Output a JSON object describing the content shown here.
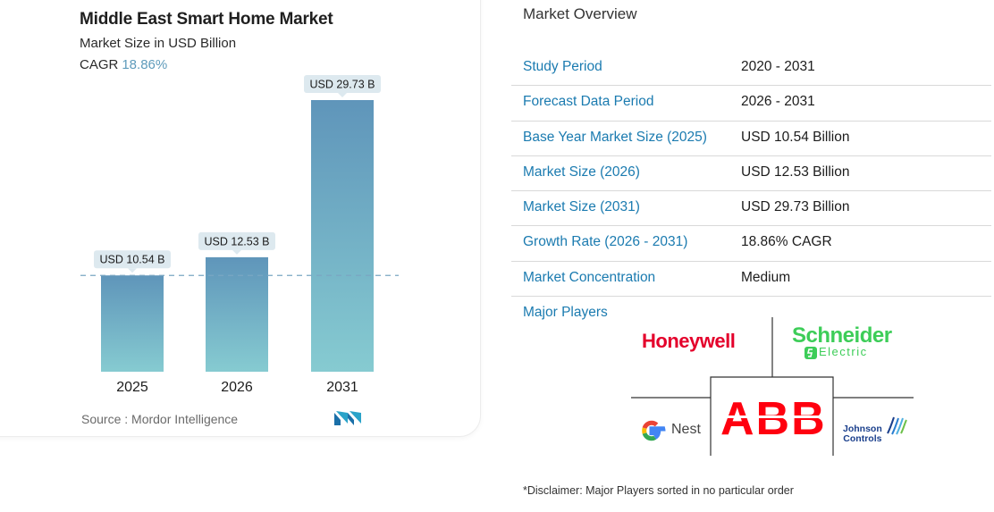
{
  "chart": {
    "title": "Middle East Smart Home Market",
    "subtitle": "Market Size in USD Billion",
    "cagr_label": "CAGR",
    "cagr_value": "18.86%",
    "source": "Source :  Mordor Intelligence"
  },
  "chart_data": {
    "type": "bar",
    "title": "Middle East Smart Home Market",
    "ylabel": "Market Size in USD Billion",
    "categories": [
      "2025",
      "2026",
      "2031"
    ],
    "values": [
      10.54,
      12.53,
      29.73
    ],
    "data_labels": [
      "USD 10.54 B",
      "USD 12.53 B",
      "USD 29.73 B"
    ],
    "ylim": [
      0,
      29.73
    ],
    "reference_line": 10.54,
    "colors": {
      "bar_top": "#5f95ba",
      "bar_bottom": "#86cbd1",
      "label_bg": "#dde9ef",
      "ref_line": "#7aa6c2"
    }
  },
  "overview": {
    "heading": "Market Overview",
    "rows": [
      {
        "label": "Study Period",
        "value": "2020 - 2031"
      },
      {
        "label": "Forecast Data Period",
        "value": "2026 - 2031"
      },
      {
        "label": "Base Year Market Size (2025)",
        "value": "USD 10.54 Billion"
      },
      {
        "label": "Market Size (2026)",
        "value": "USD 12.53 Billion"
      },
      {
        "label": "Market Size (2031)",
        "value": "USD 29.73 Billion"
      },
      {
        "label": "Growth Rate (2026 - 2031)",
        "value": "18.86% CAGR"
      },
      {
        "label": "Market Concentration",
        "value": "Medium"
      }
    ],
    "players_label": "Major Players",
    "players": {
      "honeywell": "Honeywell",
      "schneider": "Schneider",
      "schneider_sub": "Electric",
      "abb": "ABB",
      "nest": "Nest",
      "johnson_1": "Johnson",
      "johnson_2": "Controls"
    },
    "disclaimer": "*Disclaimer: Major Players sorted in no particular order"
  }
}
